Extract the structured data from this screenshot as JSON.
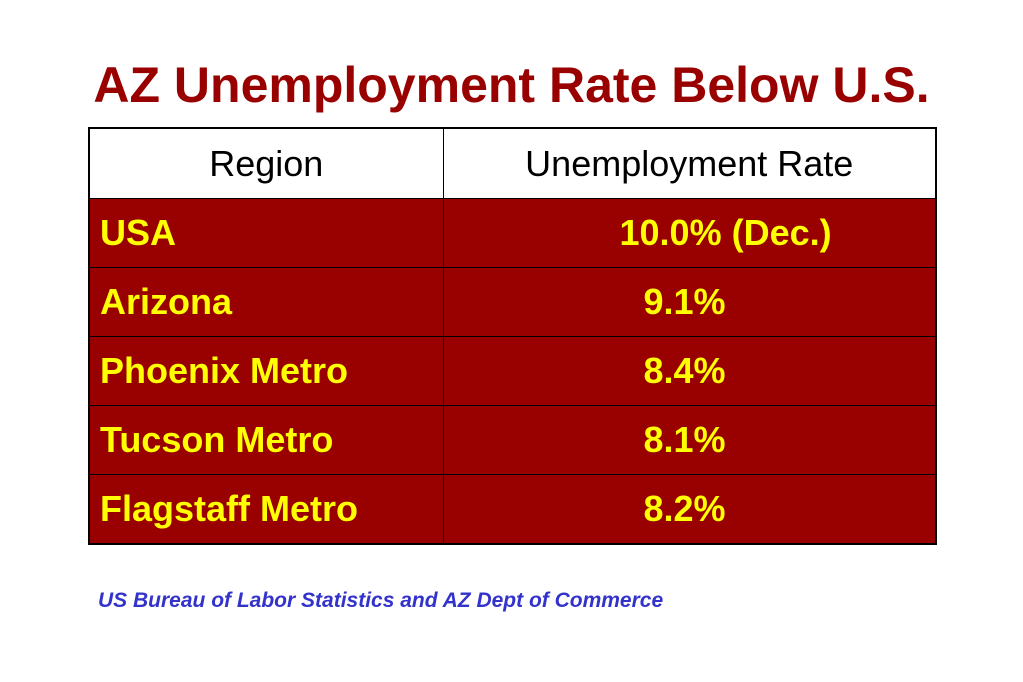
{
  "title": "AZ Unemployment Rate Below U.S.",
  "table": {
    "headers": [
      "Region",
      "Unemployment Rate"
    ],
    "rows": [
      {
        "region": "USA",
        "rate": "10.0% (Dec.)"
      },
      {
        "region": "Arizona",
        "rate": "9.1%"
      },
      {
        "region": "Phoenix Metro",
        "rate": "8.4%"
      },
      {
        "region": "Tucson Metro",
        "rate": "8.1%"
      },
      {
        "region": "Flagstaff Metro",
        "rate": "8.2%"
      }
    ]
  },
  "source": "US Bureau of Labor Statistics and AZ Dept of Commerce",
  "colors": {
    "title": "#990000",
    "row_background": "#990000",
    "row_text": "#ffff00",
    "header_background": "#ffffff",
    "source_text": "#3333cc"
  }
}
